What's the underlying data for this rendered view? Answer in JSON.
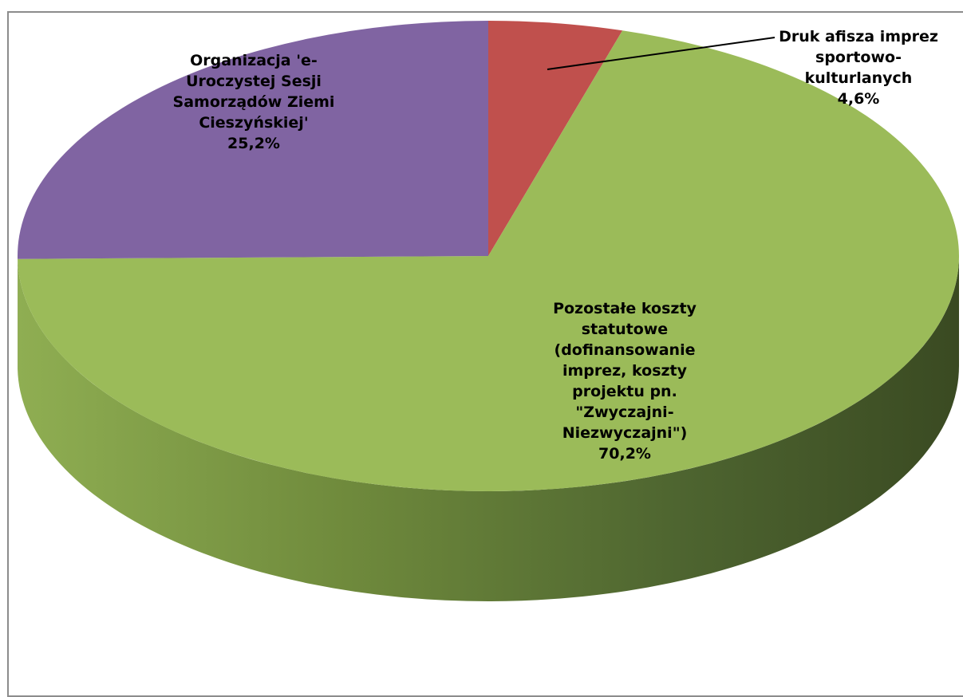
{
  "chart_data": {
    "type": "pie",
    "title": "",
    "style": "3d-pie",
    "slices": [
      {
        "label_lines": [
          "Druk afisza imprez",
          "sportowo-",
          "kulturlanych"
        ],
        "percent_label": "4,6%",
        "value": 4.6,
        "color": "#c0504d"
      },
      {
        "label_lines": [
          "Pozostałe koszty",
          "statutowe",
          "(dofinansowanie",
          "imprez, koszty",
          "projektu pn.",
          "\"Zwyczajni-",
          "Niezwyczajni\")"
        ],
        "percent_label": "70,2%",
        "value": 70.2,
        "color": "#9bbb59"
      },
      {
        "label_lines": [
          "Organizacja 'e-",
          "Uroczystej Sesji",
          "Samorządów Ziemi",
          "Cieszyńskiej'"
        ],
        "percent_label": "25,2%",
        "value": 25.2,
        "color": "#8064a2"
      }
    ],
    "legend": "none",
    "data_labels": "category-and-percent"
  }
}
